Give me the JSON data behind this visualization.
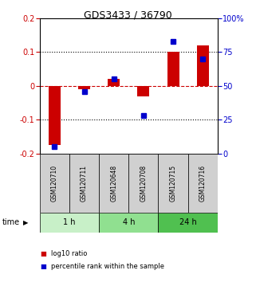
{
  "title": "GDS3433 / 36790",
  "samples": [
    "GSM120710",
    "GSM120711",
    "GSM120648",
    "GSM120708",
    "GSM120715",
    "GSM120716"
  ],
  "log10_ratio": [
    -0.175,
    -0.01,
    0.02,
    -0.03,
    0.1,
    0.12
  ],
  "percentile_rank": [
    5,
    46,
    55,
    28,
    83,
    70
  ],
  "groups": [
    {
      "label": "1 h",
      "indices": [
        0,
        1
      ],
      "color": "#c8f0c8"
    },
    {
      "label": "4 h",
      "indices": [
        2,
        3
      ],
      "color": "#90e090"
    },
    {
      "label": "24 h",
      "indices": [
        4,
        5
      ],
      "color": "#50c050"
    }
  ],
  "ylim_left": [
    -0.2,
    0.2
  ],
  "ylim_right": [
    0,
    100
  ],
  "yticks_left": [
    -0.2,
    -0.1,
    0.0,
    0.1,
    0.2
  ],
  "yticks_right": [
    0,
    25,
    50,
    75,
    100
  ],
  "ytick_labels_right": [
    "0",
    "25",
    "50",
    "75",
    "100%"
  ],
  "bar_color": "#cc0000",
  "dot_color": "#0000cc",
  "zero_line_color": "#cc0000",
  "grid_color": "#000000",
  "bg_color": "#ffffff",
  "plot_bg": "#ffffff",
  "header_bg": "#d0d0d0",
  "time_label": "time",
  "arrow": "▶",
  "legend_bar": "log10 ratio",
  "legend_dot": "percentile rank within the sample"
}
